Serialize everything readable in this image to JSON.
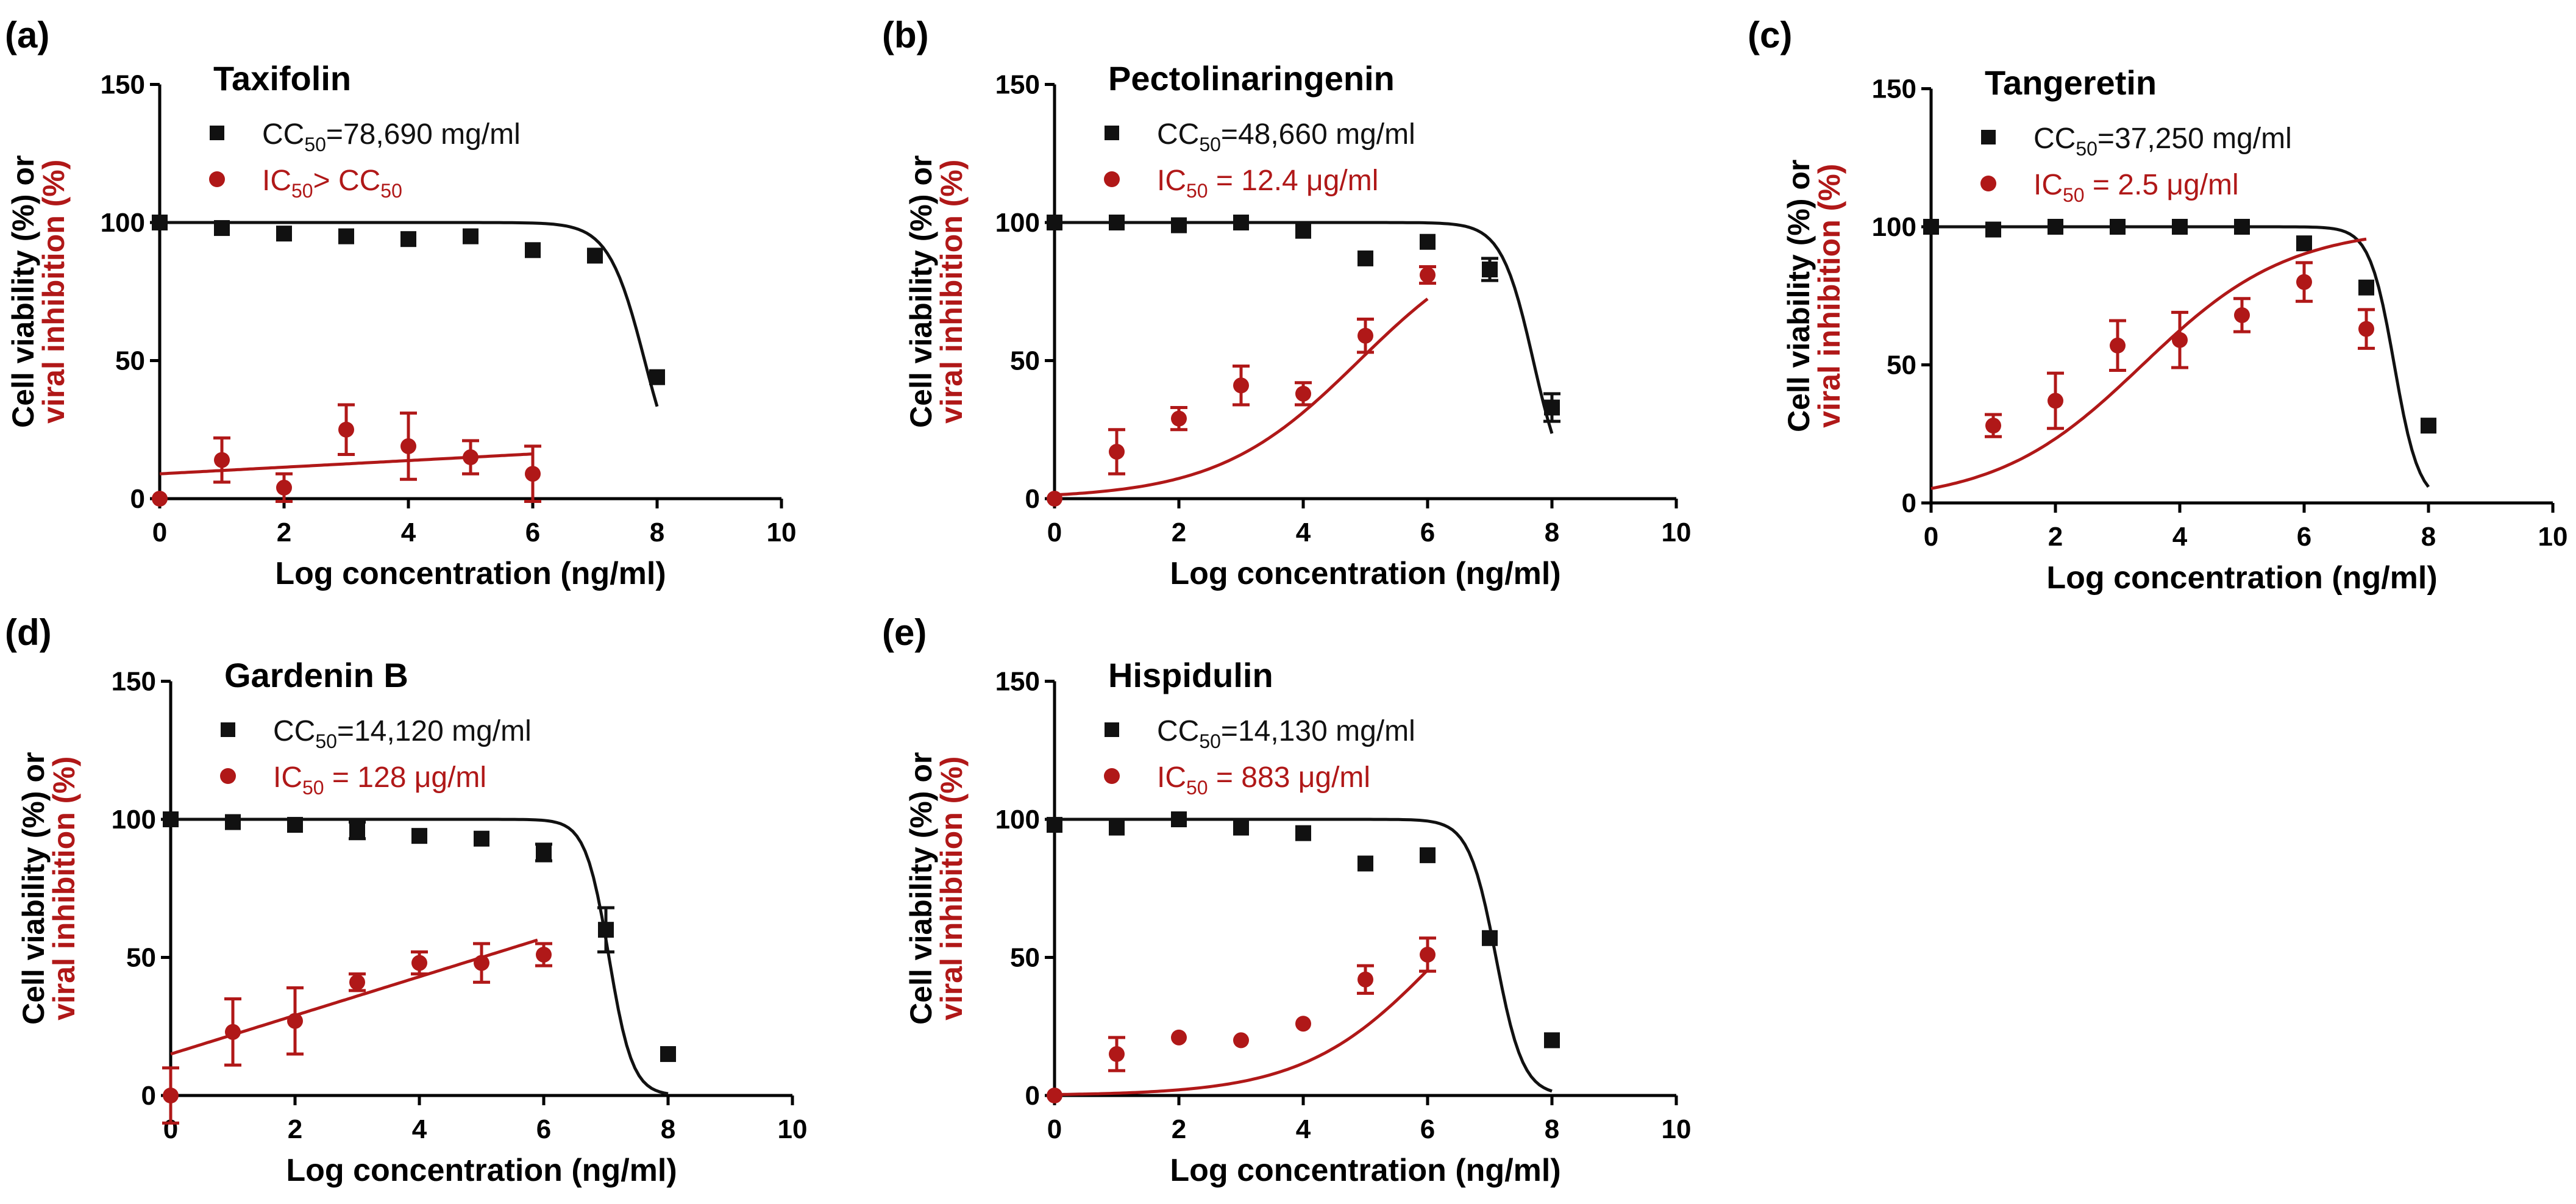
{
  "figure": {
    "colors": {
      "cell": "#111111",
      "viral": "#b01818",
      "axis": "#000000"
    }
  },
  "chart_data": [
    {
      "type": "scatter",
      "panel_label": "(a)",
      "title": "Taxifolin",
      "xlabel": "Log concentration (ng/ml)",
      "ylabel_black": "Cell viability (%) or",
      "ylabel_red": "viral inhibition (%)",
      "xlim": [
        0,
        10
      ],
      "ylim": [
        0,
        150
      ],
      "xticks": [
        "0",
        "2",
        "4",
        "6",
        "8",
        "10"
      ],
      "yticks": [
        "0",
        "50",
        "100",
        "150"
      ],
      "legend": [
        {
          "prefix": "CC",
          "sub": "50",
          "suffix": "=78,690 mg/ml"
        },
        {
          "prefix": "IC",
          "sub": "50",
          "suffix": "> CC",
          "sub2": "50"
        }
      ],
      "series": [
        {
          "name": "Cell viability",
          "marker": "square",
          "color": "#111111",
          "x": [
            0,
            1,
            2,
            3,
            4,
            5,
            6,
            7,
            8
          ],
          "y": [
            100,
            98,
            96,
            95,
            94,
            95,
            90,
            88,
            44
          ],
          "err": [
            0,
            0,
            0,
            0,
            0,
            0,
            0,
            0,
            0
          ],
          "fit": {
            "kind": "sigmoid_down",
            "top": 100,
            "ic": 7.8,
            "hill": 1.5,
            "x0": 0,
            "x1": 8
          }
        },
        {
          "name": "Viral inhibition",
          "marker": "circle",
          "color": "#b01818",
          "x": [
            0,
            1,
            2,
            3,
            4,
            5,
            6
          ],
          "y": [
            0,
            14,
            4,
            25,
            19,
            15,
            9
          ],
          "err": [
            0,
            8,
            5,
            9,
            12,
            6,
            10
          ],
          "fit": {
            "kind": "linear",
            "a": 9,
            "b": 1.2,
            "x0": 0,
            "x1": 6
          }
        }
      ]
    },
    {
      "type": "scatter",
      "panel_label": "(b)",
      "title": "Pectolinaringenin",
      "xlabel": "Log concentration (ng/ml)",
      "ylabel_black": "Cell viability (%) or",
      "ylabel_red": "viral inhibition (%)",
      "xlim": [
        0,
        10
      ],
      "ylim": [
        0,
        150
      ],
      "xticks": [
        "0",
        "2",
        "4",
        "6",
        "8",
        "10"
      ],
      "yticks": [
        "0",
        "50",
        "100",
        "150"
      ],
      "legend": [
        {
          "prefix": "CC",
          "sub": "50",
          "suffix": "=48,660 mg/ml"
        },
        {
          "prefix": "IC",
          "sub": "50",
          "suffix": " = 12.4 μg/ml"
        }
      ],
      "series": [
        {
          "name": "Cell viability",
          "marker": "square",
          "color": "#111111",
          "x": [
            0,
            1,
            2,
            3,
            4,
            5,
            6,
            7,
            8
          ],
          "y": [
            100,
            100,
            99,
            100,
            97,
            87,
            93,
            83,
            33
          ],
          "err": [
            0,
            0,
            0,
            0,
            0,
            0,
            0,
            4,
            5
          ],
          "fit": {
            "kind": "sigmoid_down",
            "top": 100,
            "ic": 7.7,
            "hill": 1.7,
            "x0": 0,
            "x1": 8
          }
        },
        {
          "name": "Viral inhibition",
          "marker": "circle",
          "color": "#b01818",
          "x": [
            0,
            1,
            2,
            3,
            4,
            5,
            6
          ],
          "y": [
            0,
            17,
            29,
            41,
            38,
            59,
            81
          ],
          "err": [
            0,
            8,
            4,
            7,
            4,
            6,
            3
          ],
          "fit": {
            "kind": "sigmoid_up",
            "bottom": 0,
            "top": 100,
            "ic": 4.9,
            "hill": 0.38,
            "x0": 0,
            "x1": 6
          }
        }
      ]
    },
    {
      "type": "scatter",
      "panel_label": "(c)",
      "title": "Tangeretin",
      "xlabel": "Log concentration (ng/ml)",
      "ylabel_black": "Cell viability (%) or",
      "ylabel_red": "viral inhibition (%)",
      "xlim": [
        0,
        10
      ],
      "ylim": [
        0,
        150
      ],
      "xticks": [
        "0",
        "2",
        "4",
        "6",
        "8",
        "10"
      ],
      "yticks": [
        "0",
        "50",
        "100",
        "150"
      ],
      "legend": [
        {
          "prefix": "CC",
          "sub": "50",
          "suffix": "=37,250 mg/ml"
        },
        {
          "prefix": "IC",
          "sub": "50",
          "suffix": " = 2.5 μg/ml"
        }
      ],
      "series": [
        {
          "name": "Cell viability",
          "marker": "square",
          "color": "#111111",
          "x": [
            0,
            1,
            2,
            3,
            4,
            5,
            6,
            7,
            8
          ],
          "y": [
            100,
            99,
            100,
            100,
            100,
            100,
            94,
            78,
            28
          ],
          "err": [
            0,
            0,
            0,
            0,
            0,
            0,
            0,
            0,
            0
          ],
          "fit": {
            "kind": "sigmoid_down",
            "top": 100,
            "ic": 7.45,
            "hill": 2.2,
            "x0": 0,
            "x1": 8
          }
        },
        {
          "name": "Viral inhibition",
          "marker": "circle",
          "color": "#b01818",
          "x": [
            1,
            2,
            3,
            4,
            5,
            6,
            7
          ],
          "y": [
            28,
            37,
            57,
            59,
            68,
            80,
            63
          ],
          "err": [
            4,
            10,
            9,
            10,
            6,
            7,
            7
          ],
          "fit": {
            "kind": "sigmoid_up",
            "bottom": 0,
            "top": 100,
            "ic": 3.4,
            "hill": 0.37,
            "x0": 0,
            "x1": 7
          }
        }
      ]
    },
    {
      "type": "scatter",
      "panel_label": "(d)",
      "title": "Gardenin B",
      "xlabel": "Log concentration (ng/ml)",
      "ylabel_black": "Cell viability (%) or",
      "ylabel_red": "viral inhibition (%)",
      "xlim": [
        0,
        10
      ],
      "ylim": [
        0,
        150
      ],
      "xticks": [
        "0",
        "2",
        "4",
        "6",
        "8",
        "10"
      ],
      "yticks": [
        "0",
        "50",
        "100",
        "150"
      ],
      "legend": [
        {
          "prefix": "CC",
          "sub": "50",
          "suffix": "=14,120 mg/ml"
        },
        {
          "prefix": "IC",
          "sub": "50",
          "suffix": " = 128 μg/ml"
        }
      ],
      "series": [
        {
          "name": "Cell viability",
          "marker": "square",
          "color": "#111111",
          "x": [
            0,
            1,
            2,
            3,
            4,
            5,
            6,
            7,
            8
          ],
          "y": [
            100,
            99,
            98,
            96,
            94,
            93,
            88,
            60,
            15
          ],
          "err": [
            0,
            0,
            0,
            3,
            0,
            0,
            3,
            8,
            0
          ],
          "fit": {
            "kind": "sigmoid_down",
            "top": 100,
            "ic": 7.05,
            "hill": 2.3,
            "x0": 0,
            "x1": 8
          }
        },
        {
          "name": "Viral inhibition",
          "marker": "circle",
          "color": "#b01818",
          "x": [
            0,
            1,
            2,
            3,
            4,
            5,
            6
          ],
          "y": [
            0,
            23,
            27,
            41,
            48,
            48,
            51
          ],
          "err": [
            10,
            12,
            12,
            3,
            4,
            7,
            4
          ],
          "fit": {
            "kind": "linear",
            "a": 15,
            "b": 7,
            "x0": 0,
            "x1": 5.9
          }
        }
      ]
    },
    {
      "type": "scatter",
      "panel_label": "(e)",
      "title": "Hispidulin",
      "xlabel": "Log concentration (ng/ml)",
      "ylabel_black": "Cell viability (%) or",
      "ylabel_red": "viral inhibition (%)",
      "xlim": [
        0,
        10
      ],
      "ylim": [
        0,
        150
      ],
      "xticks": [
        "0",
        "2",
        "4",
        "6",
        "8",
        "10"
      ],
      "yticks": [
        "0",
        "50",
        "100",
        "150"
      ],
      "legend": [
        {
          "prefix": "CC",
          "sub": "50",
          "suffix": "=14,130 mg/ml"
        },
        {
          "prefix": "IC",
          "sub": "50",
          "suffix": " = 883 μg/ml"
        }
      ],
      "series": [
        {
          "name": "Cell viability",
          "marker": "square",
          "color": "#111111",
          "x": [
            0,
            1,
            2,
            3,
            4,
            5,
            6,
            7,
            8
          ],
          "y": [
            98,
            97,
            100,
            97,
            95,
            84,
            87,
            57,
            20
          ],
          "err": [
            0,
            0,
            0,
            0,
            0,
            0,
            0,
            0,
            0
          ],
          "fit": {
            "kind": "sigmoid_down",
            "top": 100,
            "ic": 7.1,
            "hill": 2.0,
            "x0": 0,
            "x1": 8
          }
        },
        {
          "name": "Viral inhibition",
          "marker": "circle",
          "color": "#b01818",
          "x": [
            0,
            1,
            2,
            3,
            4,
            5,
            6
          ],
          "y": [
            0,
            15,
            21,
            20,
            26,
            42,
            51
          ],
          "err": [
            0,
            6,
            0,
            0,
            0,
            5,
            6
          ],
          "fit": {
            "kind": "sigmoid_up",
            "bottom": 0,
            "top": 100,
            "ic": 6.2,
            "hill": 0.4,
            "x0": 0,
            "x1": 6
          }
        }
      ]
    }
  ]
}
